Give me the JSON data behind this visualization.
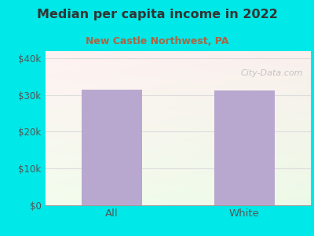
{
  "title": "Median per capita income in 2022",
  "subtitle": "New Castle Northwest, PA",
  "categories": [
    "All",
    "White"
  ],
  "values": [
    31500,
    31200
  ],
  "bar_color": "#b8a8d0",
  "outer_bg_color": "#00e8e8",
  "chart_bg_left_top": "#e0ede0",
  "chart_bg_right_top": "#f0f0f8",
  "chart_bg_left_bottom": "#d8edd8",
  "chart_bg_right_bottom": "#f8f8f8",
  "title_color": "#333333",
  "subtitle_color": "#aa6644",
  "tick_label_color": "#555555",
  "ytick_labels": [
    "$0",
    "$10k",
    "$20k",
    "$30k",
    "$40k"
  ],
  "ytick_values": [
    0,
    10000,
    20000,
    30000,
    40000
  ],
  "ylim": [
    0,
    42000
  ],
  "watermark": "City-Data.com",
  "watermark_color": "#bbbbbb",
  "grid_color": "#dddddd"
}
